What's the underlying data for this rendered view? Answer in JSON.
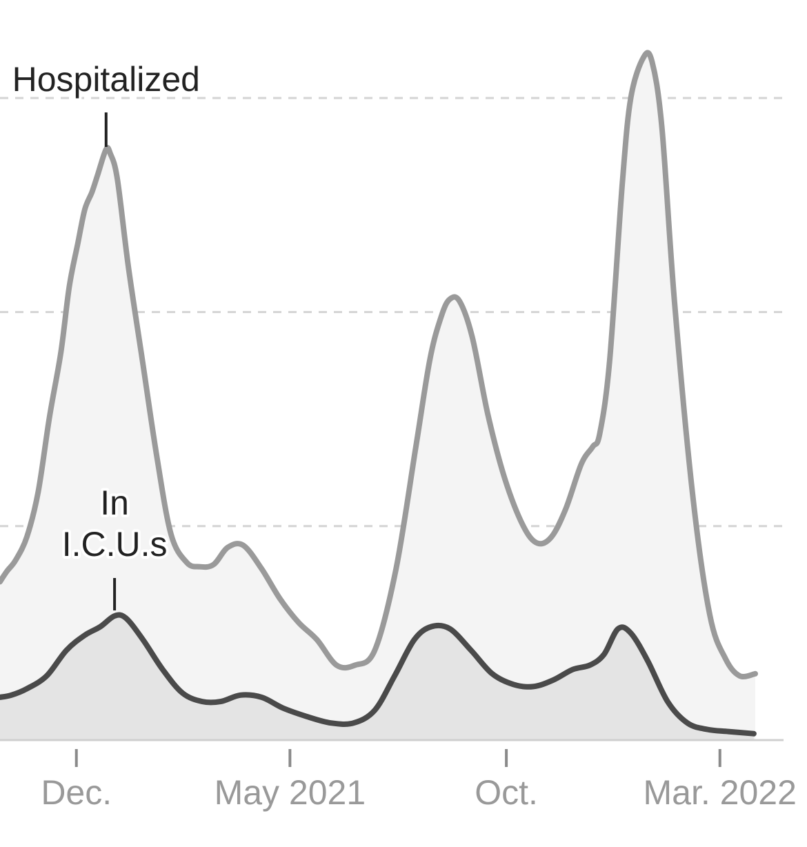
{
  "chart_data": {
    "type": "area",
    "title": "",
    "xlabel": "",
    "ylabel": "",
    "x_ticks": [
      "Dec.",
      "May 2021",
      "Oct.",
      "Mar. 2022"
    ],
    "x_tick_dates": [
      "2020-12-01",
      "2021-05-01",
      "2021-10-01",
      "2022-03-01"
    ],
    "x_range": [
      "2020-10-08",
      "2022-04-15"
    ],
    "ylim": [
      0,
      160000
    ],
    "gridlines": [
      50000,
      100000,
      150000
    ],
    "y_tick_labels_shown": false,
    "series": [
      {
        "name": "Hospitalized",
        "color": "#9a9a9a",
        "points": [
          [
            "2020-10-08",
            37000
          ],
          [
            "2020-10-13",
            39500
          ],
          [
            "2020-10-19",
            42000
          ],
          [
            "2020-10-27",
            47500
          ],
          [
            "2020-11-04",
            58000
          ],
          [
            "2020-11-12",
            75500
          ],
          [
            "2020-11-20",
            90500
          ],
          [
            "2020-11-26",
            106000
          ],
          [
            "2020-12-02",
            116000
          ],
          [
            "2020-12-07",
            124000
          ],
          [
            "2020-12-12",
            128000
          ],
          [
            "2020-12-16",
            132000
          ],
          [
            "2020-12-22",
            138000
          ],
          [
            "2020-12-25",
            137000
          ],
          [
            "2020-12-30",
            131000
          ],
          [
            "2021-01-07",
            110000
          ],
          [
            "2021-01-17",
            88000
          ],
          [
            "2021-01-27",
            66000
          ],
          [
            "2021-02-06",
            48000
          ],
          [
            "2021-02-17",
            41500
          ],
          [
            "2021-02-26",
            40500
          ],
          [
            "2021-03-08",
            41000
          ],
          [
            "2021-03-18",
            45000
          ],
          [
            "2021-03-29",
            45500
          ],
          [
            "2021-04-11",
            40000
          ],
          [
            "2021-04-24",
            33000
          ],
          [
            "2021-05-07",
            27500
          ],
          [
            "2021-05-20",
            23500
          ],
          [
            "2021-06-03",
            17500
          ],
          [
            "2021-06-16",
            17500
          ],
          [
            "2021-06-30",
            21000
          ],
          [
            "2021-07-15",
            40000
          ],
          [
            "2021-07-29",
            68500
          ],
          [
            "2021-08-08",
            89000
          ],
          [
            "2021-08-16",
            99000
          ],
          [
            "2021-08-22",
            103000
          ],
          [
            "2021-08-29",
            102500
          ],
          [
            "2021-09-07",
            94000
          ],
          [
            "2021-09-18",
            76000
          ],
          [
            "2021-09-30",
            61000
          ],
          [
            "2021-10-13",
            50000
          ],
          [
            "2021-10-23",
            46000
          ],
          [
            "2021-11-02",
            47500
          ],
          [
            "2021-11-12",
            54000
          ],
          [
            "2021-11-23",
            64500
          ],
          [
            "2021-12-01",
            68500
          ],
          [
            "2021-12-06",
            71500
          ],
          [
            "2021-12-13",
            88500
          ],
          [
            "2021-12-22",
            130000
          ],
          [
            "2021-12-28",
            150000
          ],
          [
            "2022-01-06",
            159500
          ],
          [
            "2022-01-12",
            158500
          ],
          [
            "2022-01-19",
            143000
          ],
          [
            "2022-01-28",
            102000
          ],
          [
            "2022-02-10",
            56500
          ],
          [
            "2022-02-22",
            29000
          ],
          [
            "2022-03-05",
            19000
          ],
          [
            "2022-03-15",
            15000
          ],
          [
            "2022-03-26",
            15500
          ]
        ]
      },
      {
        "name": "In I.C.U.s",
        "color": "#4a4a4a",
        "points": [
          [
            "2020-10-08",
            10000
          ],
          [
            "2020-10-16",
            10500
          ],
          [
            "2020-10-27",
            12000
          ],
          [
            "2020-11-10",
            15000
          ],
          [
            "2020-11-24",
            21000
          ],
          [
            "2020-12-07",
            24500
          ],
          [
            "2020-12-18",
            26500
          ],
          [
            "2020-12-28",
            29000
          ],
          [
            "2021-01-05",
            28500
          ],
          [
            "2021-01-17",
            23500
          ],
          [
            "2021-01-31",
            16500
          ],
          [
            "2021-02-14",
            11000
          ],
          [
            "2021-02-28",
            9000
          ],
          [
            "2021-03-13",
            9000
          ],
          [
            "2021-03-27",
            10500
          ],
          [
            "2021-04-11",
            10000
          ],
          [
            "2021-04-26",
            7500
          ],
          [
            "2021-05-13",
            5500
          ],
          [
            "2021-05-30",
            4000
          ],
          [
            "2021-06-15",
            4000
          ],
          [
            "2021-06-30",
            7000
          ],
          [
            "2021-07-14",
            15000
          ],
          [
            "2021-07-28",
            23500
          ],
          [
            "2021-08-09",
            26500
          ],
          [
            "2021-08-22",
            26000
          ],
          [
            "2021-09-06",
            21000
          ],
          [
            "2021-09-21",
            15500
          ],
          [
            "2021-10-06",
            13000
          ],
          [
            "2021-10-20",
            12500
          ],
          [
            "2021-11-03",
            14000
          ],
          [
            "2021-11-17",
            16500
          ],
          [
            "2021-11-29",
            17500
          ],
          [
            "2021-12-09",
            20000
          ],
          [
            "2021-12-19",
            26000
          ],
          [
            "2021-12-28",
            25000
          ],
          [
            "2022-01-09",
            18500
          ],
          [
            "2022-01-23",
            9000
          ],
          [
            "2022-02-06",
            4000
          ],
          [
            "2022-02-20",
            2500
          ],
          [
            "2022-03-07",
            2000
          ],
          [
            "2022-03-25",
            1500
          ]
        ]
      }
    ],
    "annotations": [
      {
        "series": "Hospitalized",
        "label": "Hospitalized",
        "at_date": "2020-12-22"
      },
      {
        "series": "In I.C.U.s",
        "label_lines": [
          "In",
          "I.C.U.s"
        ],
        "at_date": "2020-12-28"
      }
    ]
  }
}
